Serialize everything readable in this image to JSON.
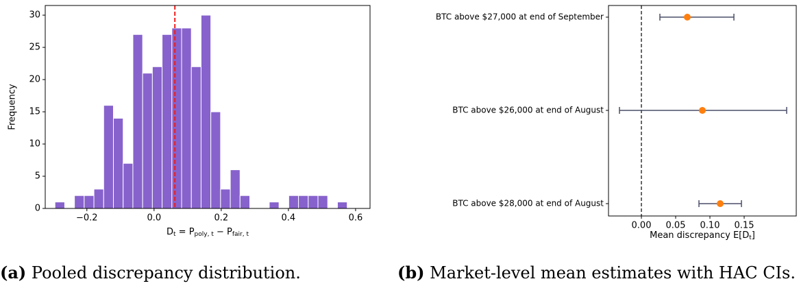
{
  "chart_data": [
    {
      "type": "histogram",
      "xlabel": [
        "D",
        "t",
        " = P",
        "poly, t",
        " − P",
        "fair, t"
      ],
      "ylabel": "Frequency",
      "bins": [
        -0.295,
        -0.266,
        -0.237,
        -0.208,
        -0.179,
        -0.15,
        -0.121,
        -0.092,
        -0.063,
        -0.034,
        -0.005,
        0.024,
        0.053,
        0.082,
        0.111,
        0.14,
        0.169,
        0.198,
        0.227,
        0.256,
        0.285,
        0.314,
        0.343,
        0.372,
        0.401,
        0.43,
        0.459,
        0.488,
        0.517,
        0.546,
        0.575
      ],
      "values": [
        1,
        0,
        2,
        2,
        3,
        16,
        14,
        7,
        27,
        21,
        22,
        27,
        28,
        28,
        22,
        30,
        15,
        3,
        6,
        2,
        0,
        0,
        1,
        0,
        2,
        2,
        2,
        2,
        0,
        1
      ],
      "color": "#8762cc",
      "vline": 0.062,
      "vline_color": "#ee1c1c",
      "xlim": [
        -0.324,
        0.643
      ],
      "ylim": [
        0,
        31.5
      ],
      "xticks": [
        {
          "value": -0.2,
          "label": "−0.2"
        },
        {
          "value": 0,
          "label": "0.0"
        },
        0.2,
        0.4,
        0.6
      ],
      "yticks": [
        0,
        5,
        10,
        15,
        20,
        25,
        30
      ]
    },
    {
      "type": "errorbar",
      "xlabel": [
        "Mean discrepancy E[D",
        "t",
        "]"
      ],
      "categories": [
        "BTC above $27,000 at end of September",
        "BTC above $26,000 at end of August",
        "BTC above $28,000 at end of August"
      ],
      "values": [
        0.067,
        0.089,
        0.115
      ],
      "lower": [
        0.027,
        -0.032,
        0.084
      ],
      "upper": [
        0.135,
        0.212,
        0.146
      ],
      "color": "#ff7f0e",
      "bar_color": "#4a4e69",
      "vline": 0,
      "vline_color": "#000000",
      "xlim": [
        -0.048,
        0.226
      ],
      "xticks": [
        {
          "value": 0,
          "label": "0.00"
        },
        0.05,
        {
          "value": 0.1,
          "label": "0.10"
        },
        0.15
      ]
    }
  ],
  "captions": [
    {
      "label": "(a)",
      "text": " Pooled discrepancy distribution."
    },
    {
      "label": "(b)",
      "text": " Market-level mean estimates with HAC CIs."
    }
  ]
}
